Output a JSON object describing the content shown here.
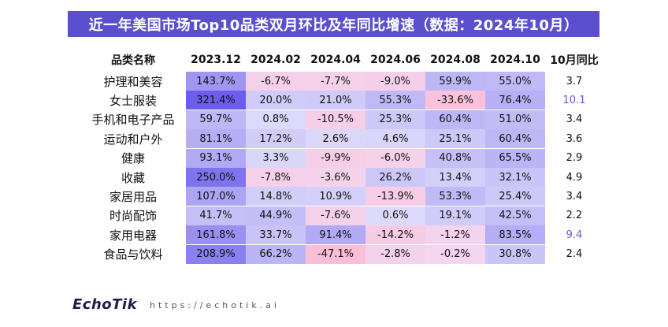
{
  "title": "近一年美国市场Top10品类双月环比及年同比增速（数据：2024年10月）",
  "brand": {
    "logo": "EchoTik",
    "url": "https://echotik.ai"
  },
  "colors": {
    "title_bg": "#5b4fce",
    "yoy_highlight": "#6a5acd"
  },
  "chart_data": {
    "type": "table",
    "title": "近一年美国市场Top10品类双月环比及年同比增速（数据：2024年10月）",
    "row_header": "品类名称",
    "columns": [
      "2023.12",
      "2024.02",
      "2024.04",
      "2024.06",
      "2024.08",
      "2024.10"
    ],
    "yoy_header": "10月同比",
    "rows": [
      {
        "category": "护理和美容",
        "values": [
          "143.7%",
          "-6.7%",
          "-7.7%",
          "-9.0%",
          "59.9%",
          "55.0%"
        ],
        "yoy": "3.7"
      },
      {
        "category": "女士服装",
        "values": [
          "321.4%",
          "20.0%",
          "21.0%",
          "55.3%",
          "-33.6%",
          "76.4%"
        ],
        "yoy": "10.1"
      },
      {
        "category": "手机和电子产品",
        "values": [
          "59.7%",
          "0.8%",
          "-10.5%",
          "25.3%",
          "60.4%",
          "51.0%"
        ],
        "yoy": "3.4"
      },
      {
        "category": "运动和户外",
        "values": [
          "81.1%",
          "17.2%",
          "2.6%",
          "4.6%",
          "25.1%",
          "60.4%"
        ],
        "yoy": "3.6"
      },
      {
        "category": "健康",
        "values": [
          "93.1%",
          "3.3%",
          "-9.9%",
          "-6.0%",
          "40.8%",
          "65.5%"
        ],
        "yoy": "2.9"
      },
      {
        "category": "收藏",
        "values": [
          "250.0%",
          "-7.8%",
          "-3.6%",
          "26.2%",
          "13.4%",
          "32.1%"
        ],
        "yoy": "4.9"
      },
      {
        "category": "家居用品",
        "values": [
          "107.0%",
          "14.8%",
          "10.9%",
          "-13.9%",
          "53.3%",
          "25.4%"
        ],
        "yoy": "3.4"
      },
      {
        "category": "时尚配饰",
        "values": [
          "41.7%",
          "44.9%",
          "-7.6%",
          "0.6%",
          "19.1%",
          "42.5%"
        ],
        "yoy": "2.2"
      },
      {
        "category": "家用电器",
        "values": [
          "161.8%",
          "33.7%",
          "91.4%",
          "-14.2%",
          "-1.2%",
          "83.5%"
        ],
        "yoy": "9.4"
      },
      {
        "category": "食品与饮料",
        "values": [
          "208.9%",
          "66.2%",
          "-47.1%",
          "-2.8%",
          "-0.2%",
          "30.8%"
        ],
        "yoy": "2.4"
      }
    ]
  }
}
